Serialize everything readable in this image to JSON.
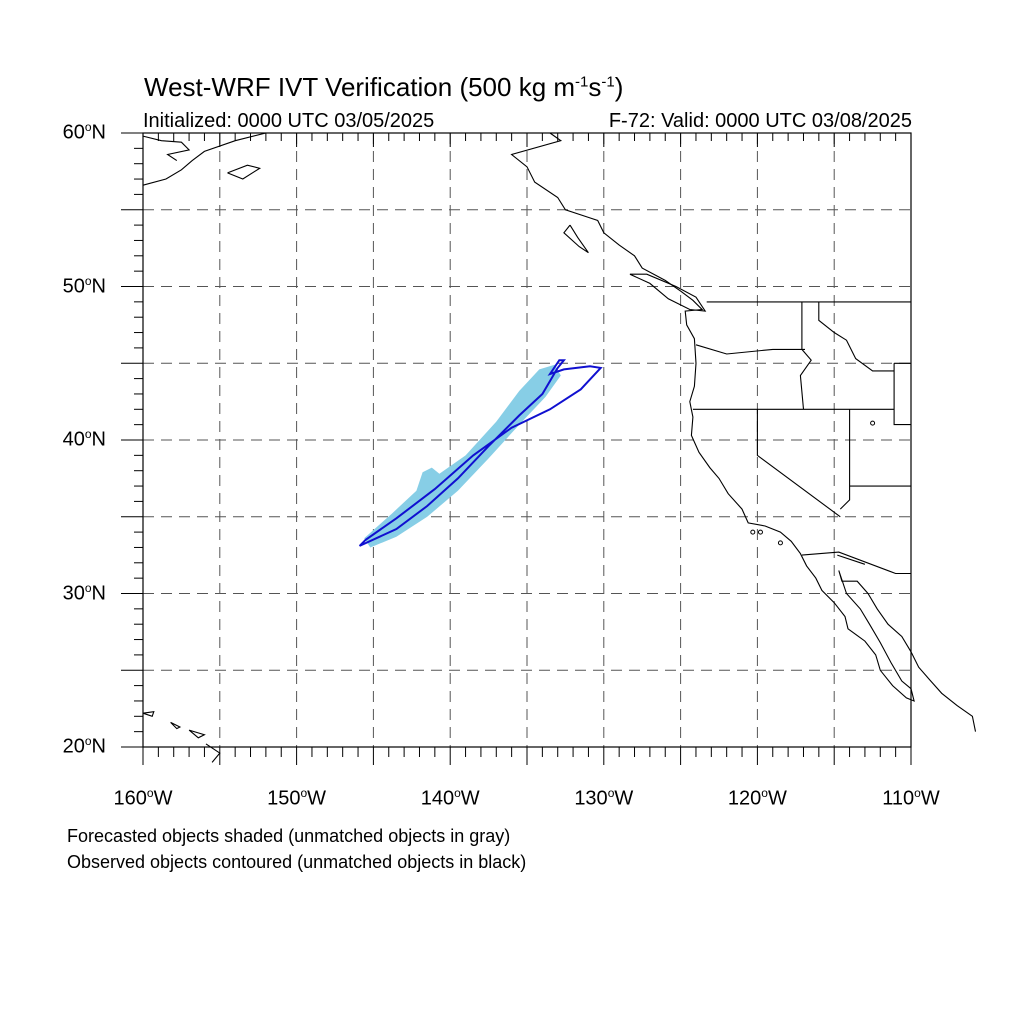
{
  "title": {
    "main": "West-WRF IVT Verification (500 kg m",
    "exp1": "-1",
    "mid": "s",
    "exp2": "-1",
    "end": ")"
  },
  "subtitle": {
    "initialized": "Initialized: 0000 UTC 03/05/2025",
    "valid": "F-72: Valid: 0000 UTC 03/08/2025"
  },
  "map_extent": {
    "lon_min": -160,
    "lon_max": -110,
    "lat_min": 20,
    "lat_max": 60
  },
  "lat_labels": [
    {
      "value": 60,
      "deg": "60",
      "hemi": "N"
    },
    {
      "value": 50,
      "deg": "50",
      "hemi": "N"
    },
    {
      "value": 40,
      "deg": "40",
      "hemi": "N"
    },
    {
      "value": 30,
      "deg": "30",
      "hemi": "N"
    },
    {
      "value": 20,
      "deg": "20",
      "hemi": "N"
    }
  ],
  "lon_labels": [
    {
      "value": -160,
      "deg": "160",
      "hemi": "W"
    },
    {
      "value": -150,
      "deg": "150",
      "hemi": "W"
    },
    {
      "value": -140,
      "deg": "140",
      "hemi": "W"
    },
    {
      "value": -130,
      "deg": "130",
      "hemi": "W"
    },
    {
      "value": -120,
      "deg": "120",
      "hemi": "W"
    },
    {
      "value": -110,
      "deg": "110",
      "hemi": "W"
    }
  ],
  "grid": {
    "lat_step": 5,
    "lon_step": 5,
    "style": "dashed"
  },
  "colors": {
    "forecast_fill": "#87CEE6",
    "observed_contour": "#1010D0",
    "coastline": "#000000",
    "grid": "#555555"
  },
  "objects": {
    "forecast_shaded": [
      [
        [
          -145.2,
          33.0
        ],
        [
          -143.5,
          33.7
        ],
        [
          -141.5,
          35.0
        ],
        [
          -139.5,
          36.7
        ],
        [
          -137.5,
          38.8
        ],
        [
          -135.5,
          41.0
        ],
        [
          -133.8,
          42.8
        ],
        [
          -132.8,
          44.2
        ],
        [
          -133.2,
          44.9
        ],
        [
          -134.2,
          44.6
        ],
        [
          -135.5,
          43.2
        ],
        [
          -137.0,
          41.2
        ],
        [
          -139.0,
          39.0
        ],
        [
          -140.7,
          37.8
        ],
        [
          -141.2,
          38.2
        ],
        [
          -141.8,
          37.9
        ],
        [
          -142.2,
          36.7
        ],
        [
          -143.8,
          35.2
        ],
        [
          -145.6,
          33.6
        ]
      ]
    ],
    "observed_contoured": [
      [
        [
          -145.9,
          33.1
        ],
        [
          -143.5,
          34.2
        ],
        [
          -141.5,
          35.7
        ],
        [
          -139.5,
          37.5
        ],
        [
          -137.5,
          39.6
        ],
        [
          -135.5,
          41.6
        ],
        [
          -134.0,
          43.0
        ],
        [
          -133.0,
          44.7
        ],
        [
          -132.6,
          45.2
        ],
        [
          -132.9,
          45.2
        ],
        [
          -133.5,
          44.3
        ],
        [
          -132.6,
          44.6
        ],
        [
          -130.9,
          44.8
        ],
        [
          -130.2,
          44.7
        ],
        [
          -131.5,
          43.3
        ],
        [
          -133.5,
          42.0
        ],
        [
          -136.0,
          40.8
        ],
        [
          -138.5,
          39.0
        ],
        [
          -141.0,
          36.8
        ],
        [
          -143.5,
          34.9
        ],
        [
          -145.5,
          33.5
        ]
      ]
    ]
  },
  "notes": {
    "forecast": "Forecasted objects shaded (unmatched objects in gray)",
    "observed": "Observed objects contoured (unmatched objects in black)"
  }
}
